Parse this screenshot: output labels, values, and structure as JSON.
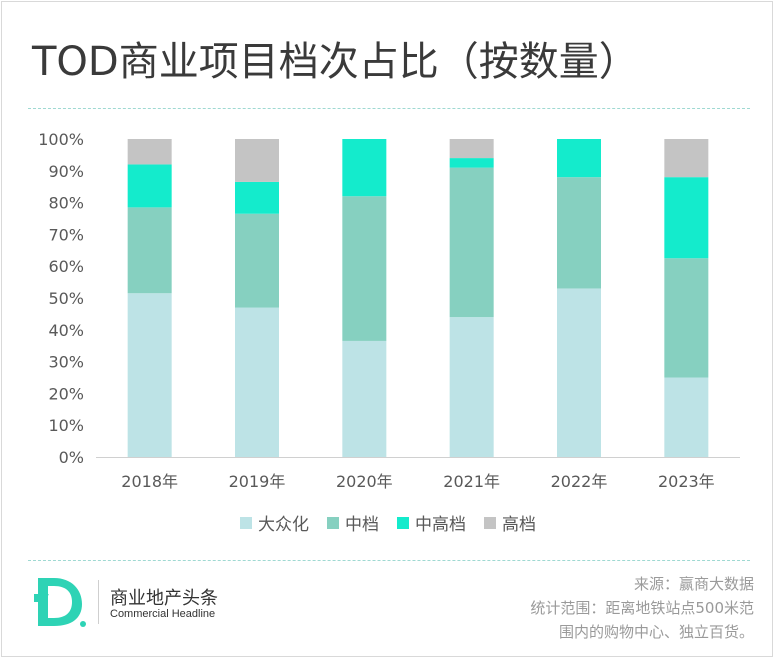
{
  "title": "TOD商业项目档次占比（按数量）",
  "chart_data": {
    "type": "bar",
    "stacked": true,
    "categories": [
      "2018年",
      "2019年",
      "2020年",
      "2021年",
      "2022年",
      "2023年"
    ],
    "series": [
      {
        "name": "大众化",
        "color": "#bde3e6",
        "values": [
          51.5,
          47,
          36.5,
          44,
          53,
          25
        ]
      },
      {
        "name": "中档",
        "color": "#86d0c0",
        "values": [
          27,
          29.5,
          45.5,
          47,
          35,
          37.5
        ]
      },
      {
        "name": "中高档",
        "color": "#14ebcc",
        "values": [
          13.5,
          10,
          18,
          3,
          12,
          25.5
        ]
      },
      {
        "name": "高档",
        "color": "#c4c4c4",
        "values": [
          8,
          13.5,
          0,
          6,
          0,
          12
        ]
      }
    ],
    "ylim": [
      0,
      100
    ],
    "yticks": [
      "0%",
      "10%",
      "20%",
      "30%",
      "40%",
      "50%",
      "60%",
      "70%",
      "80%",
      "90%",
      "100%"
    ],
    "xlabel": "",
    "ylabel": "",
    "legend": "bottom"
  },
  "brand": {
    "logo_icon": "d-logo-icon",
    "name": "商业地产头条",
    "english": "Commercial Headline",
    "accent": "#2ed3b5"
  },
  "note": {
    "source": "来源：赢商大数据",
    "scope_line1": "统计范围：距离地铁站点500米范",
    "scope_line2": "围内的购物中心、独立百货。"
  }
}
